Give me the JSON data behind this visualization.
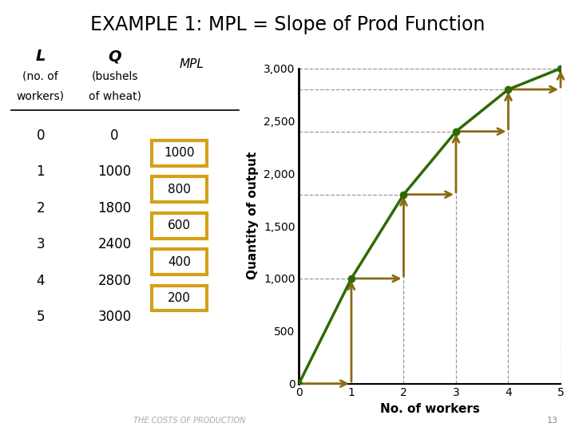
{
  "title_part1": "EXAMPLE 1: ",
  "title_part2": "MPL = Slope of Prod Function",
  "title_fontsize": 17,
  "background_color": "#ffffff",
  "L_values": [
    0,
    1,
    2,
    3,
    4,
    5
  ],
  "Q_values": [
    0,
    1000,
    1800,
    2400,
    2800,
    3000
  ],
  "MPL_values": [
    1000,
    800,
    600,
    400,
    200
  ],
  "mpl_box_color": "#d4a017",
  "curve_color": "#2d6a00",
  "arrow_color": "#8B6914",
  "dashed_color": "#999999",
  "xlabel": "No. of workers",
  "ylabel": "Quantity of output",
  "xlim": [
    0,
    5
  ],
  "ylim": [
    0,
    3200
  ],
  "yticks": [
    0,
    500,
    1000,
    1500,
    2000,
    2500,
    3000
  ],
  "xticks": [
    0,
    1,
    2,
    3,
    4,
    5
  ],
  "footer_text": "THE COSTS OF PRODUCTION",
  "page_num": "13"
}
